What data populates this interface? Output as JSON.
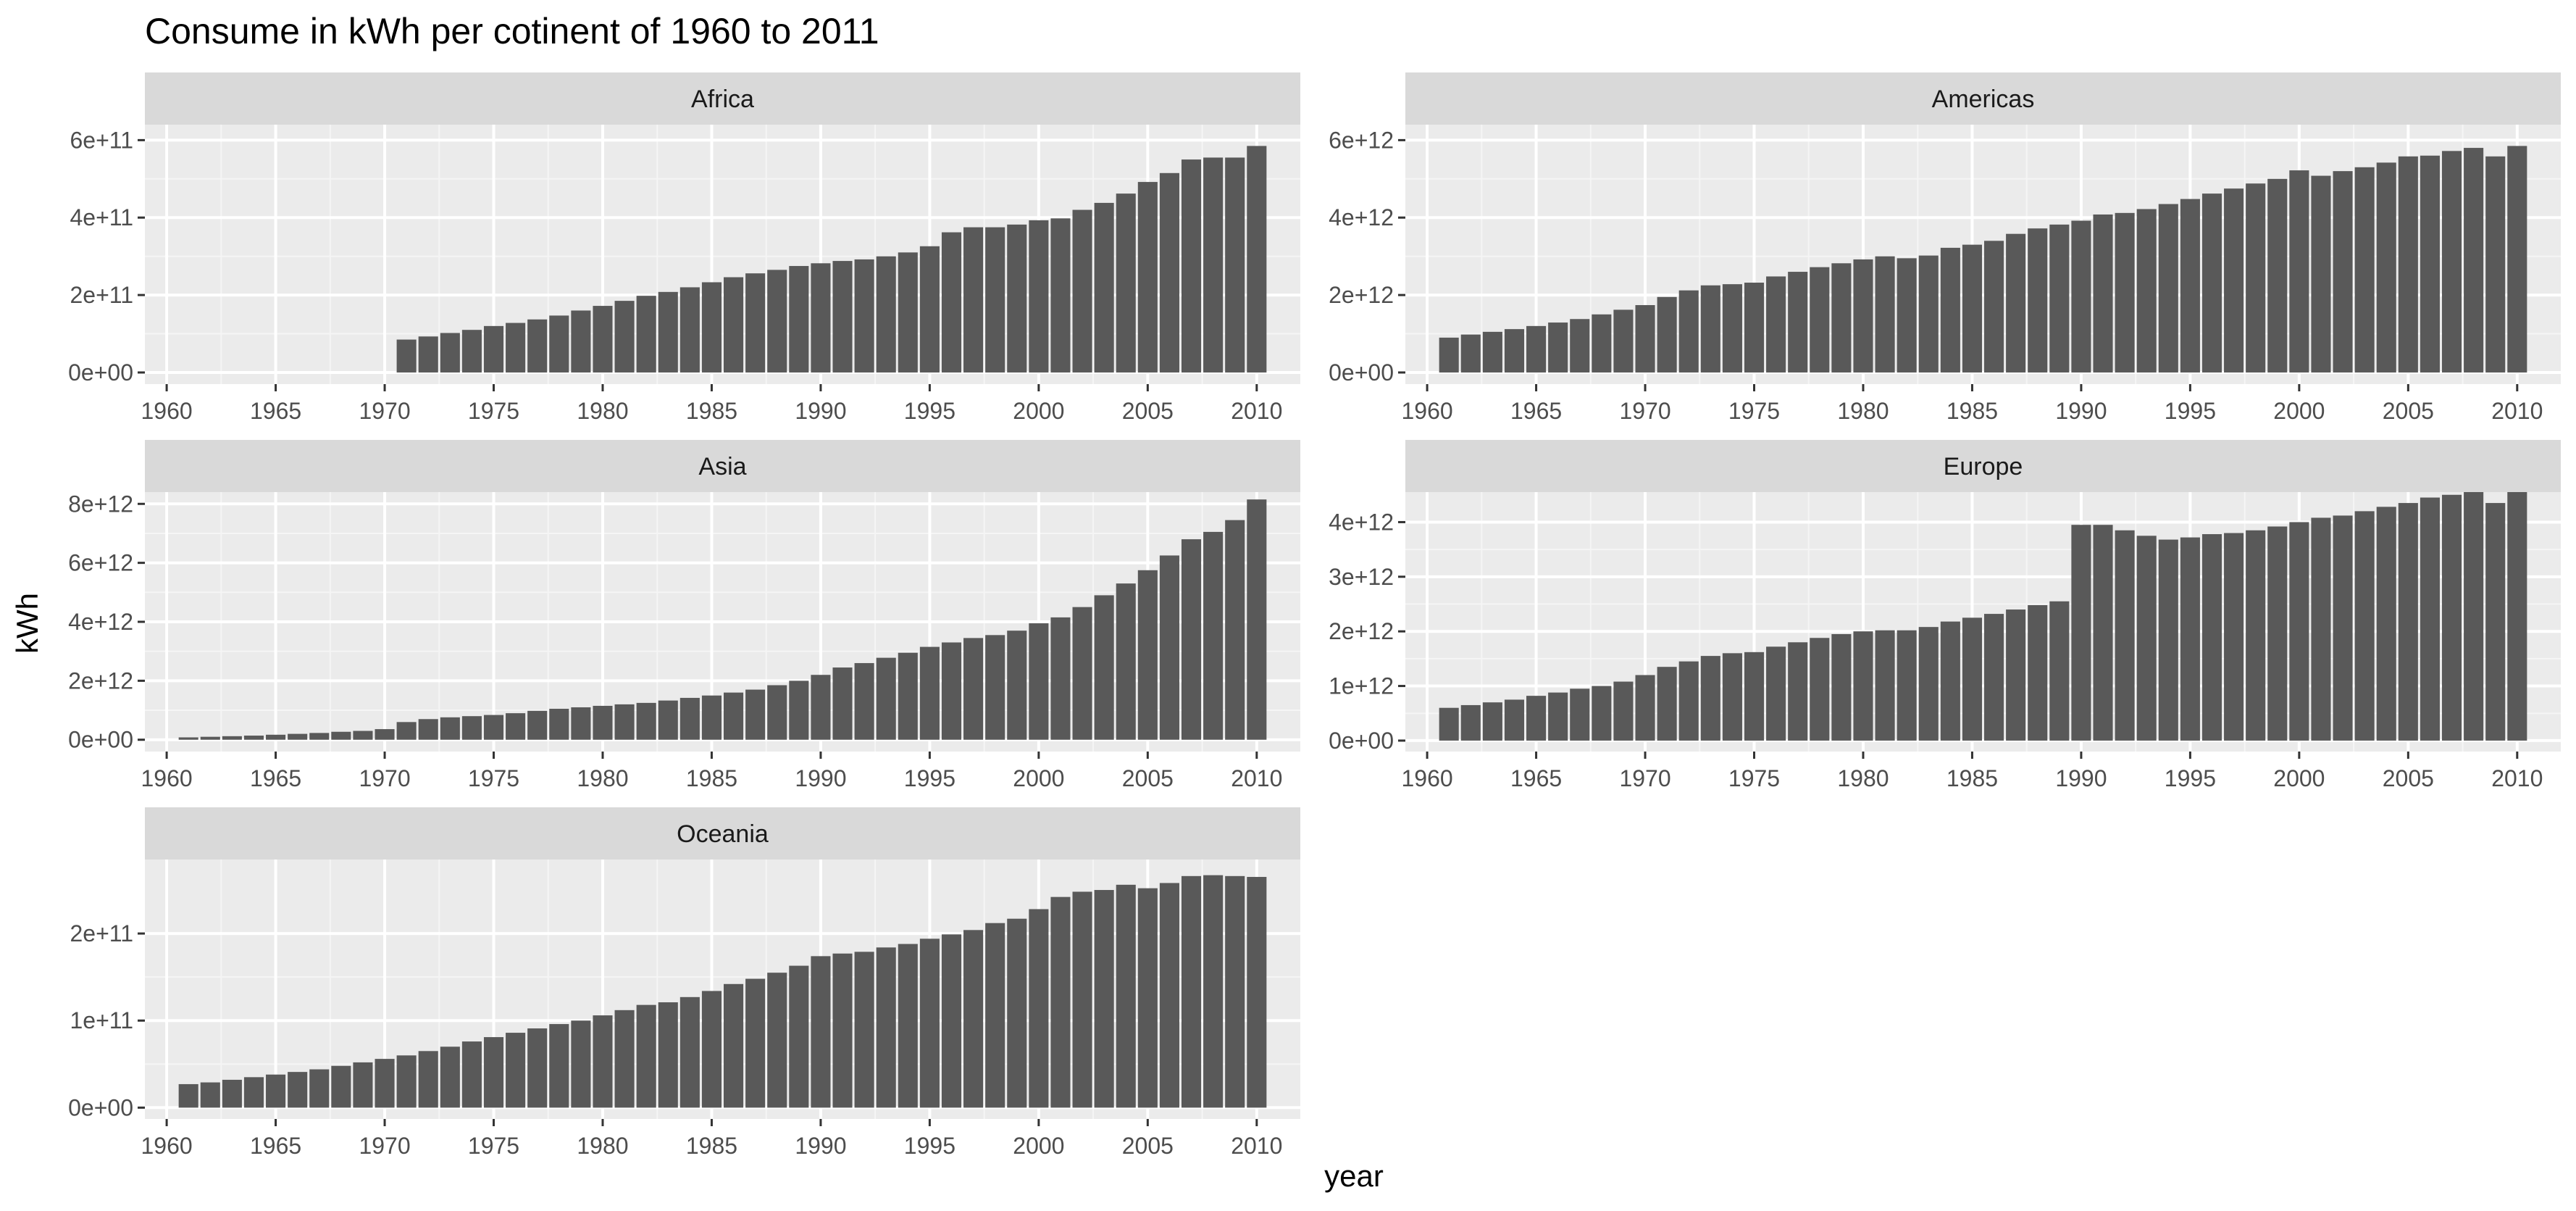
{
  "chart_data": {
    "type": "bar",
    "title": "Consume in kWh per cotinent of 1960 to 2011",
    "xlabel": "year",
    "ylabel": "kWh",
    "x_ticks": [
      "1960",
      "1965",
      "1970",
      "1975",
      "1980",
      "1985",
      "1990",
      "1995",
      "2000",
      "2005",
      "2010"
    ],
    "xlim": [
      1959,
      2012
    ],
    "grid": true,
    "facet_layout": "3 rows x 2 columns",
    "bar_color": "#595959",
    "panel_background": "#ebebeb",
    "strip_background": "#d9d9d9",
    "panels": [
      {
        "name": "Africa",
        "ylim": [
          -30000000000.0,
          640000000000.0
        ],
        "y_ticks": [
          {
            "value": 0,
            "label": "0e+00"
          },
          {
            "value": 200000000000.0,
            "label": "2e+11"
          },
          {
            "value": 400000000000.0,
            "label": "4e+11"
          },
          {
            "value": 600000000000.0,
            "label": "6e+11"
          }
        ],
        "x": [
          1971,
          1972,
          1973,
          1974,
          1975,
          1976,
          1977,
          1978,
          1979,
          1980,
          1981,
          1982,
          1983,
          1984,
          1985,
          1986,
          1987,
          1988,
          1989,
          1990,
          1991,
          1992,
          1993,
          1994,
          1995,
          1996,
          1997,
          1998,
          1999,
          2000,
          2001,
          2002,
          2003,
          2004,
          2005,
          2006,
          2007,
          2008,
          2009,
          2010
        ],
        "values": [
          85000000000.0,
          93000000000.0,
          102000000000.0,
          110000000000.0,
          120000000000.0,
          128000000000.0,
          137000000000.0,
          147000000000.0,
          160000000000.0,
          172000000000.0,
          185000000000.0,
          198000000000.0,
          208000000000.0,
          220000000000.0,
          233000000000.0,
          246000000000.0,
          256000000000.0,
          265000000000.0,
          275000000000.0,
          282000000000.0,
          288000000000.0,
          292000000000.0,
          300000000000.0,
          310000000000.0,
          326000000000.0,
          362000000000.0,
          375000000000.0,
          375000000000.0,
          382000000000.0,
          393000000000.0,
          398000000000.0,
          420000000000.0,
          438000000000.0,
          462000000000.0,
          492000000000.0,
          515000000000.0,
          550000000000.0,
          555000000000.0,
          555000000000.0,
          585000000000.0
        ]
      },
      {
        "name": "Americas",
        "ylim": [
          -300000000000.0,
          6400000000000.0
        ],
        "y_ticks": [
          {
            "value": 0,
            "label": "0e+00"
          },
          {
            "value": 2000000000000.0,
            "label": "2e+12"
          },
          {
            "value": 4000000000000.0,
            "label": "4e+12"
          },
          {
            "value": 6000000000000.0,
            "label": "6e+12"
          }
        ],
        "x": [
          1961,
          1962,
          1963,
          1964,
          1965,
          1966,
          1967,
          1968,
          1969,
          1970,
          1971,
          1972,
          1973,
          1974,
          1975,
          1976,
          1977,
          1978,
          1979,
          1980,
          1981,
          1982,
          1983,
          1984,
          1985,
          1986,
          1987,
          1988,
          1989,
          1990,
          1991,
          1992,
          1993,
          1994,
          1995,
          1996,
          1997,
          1998,
          1999,
          2000,
          2001,
          2002,
          2003,
          2004,
          2005,
          2006,
          2007,
          2008,
          2009,
          2010
        ],
        "values": [
          900000000000.0,
          980000000000.0,
          1050000000000.0,
          1120000000000.0,
          1200000000000.0,
          1290000000000.0,
          1380000000000.0,
          1500000000000.0,
          1620000000000.0,
          1740000000000.0,
          1950000000000.0,
          2120000000000.0,
          2250000000000.0,
          2280000000000.0,
          2320000000000.0,
          2480000000000.0,
          2600000000000.0,
          2720000000000.0,
          2820000000000.0,
          2920000000000.0,
          3000000000000.0,
          2950000000000.0,
          3020000000000.0,
          3220000000000.0,
          3300000000000.0,
          3400000000000.0,
          3580000000000.0,
          3720000000000.0,
          3820000000000.0,
          3920000000000.0,
          4080000000000.0,
          4120000000000.0,
          4220000000000.0,
          4350000000000.0,
          4480000000000.0,
          4620000000000.0,
          4750000000000.0,
          4880000000000.0,
          5000000000000.0,
          5220000000000.0,
          5080000000000.0,
          5200000000000.0,
          5300000000000.0,
          5420000000000.0,
          5580000000000.0,
          5600000000000.0,
          5720000000000.0,
          5800000000000.0,
          5580000000000.0,
          5850000000000.0
        ]
      },
      {
        "name": "Asia",
        "ylim": [
          -400000000000.0,
          8400000000000.0
        ],
        "y_ticks": [
          {
            "value": 0,
            "label": "0e+00"
          },
          {
            "value": 2000000000000.0,
            "label": "2e+12"
          },
          {
            "value": 4000000000000.0,
            "label": "4e+12"
          },
          {
            "value": 6000000000000.0,
            "label": "6e+12"
          },
          {
            "value": 8000000000000.0,
            "label": "8e+12"
          }
        ],
        "x": [
          1961,
          1962,
          1963,
          1964,
          1965,
          1966,
          1967,
          1968,
          1969,
          1970,
          1971,
          1972,
          1973,
          1974,
          1975,
          1976,
          1977,
          1978,
          1979,
          1980,
          1981,
          1982,
          1983,
          1984,
          1985,
          1986,
          1987,
          1988,
          1989,
          1990,
          1991,
          1992,
          1993,
          1994,
          1995,
          1996,
          1997,
          1998,
          1999,
          2000,
          2001,
          2002,
          2003,
          2004,
          2005,
          2006,
          2007,
          2008,
          2009,
          2010
        ],
        "values": [
          80000000000.0,
          100000000000.0,
          120000000000.0,
          140000000000.0,
          170000000000.0,
          200000000000.0,
          230000000000.0,
          270000000000.0,
          300000000000.0,
          360000000000.0,
          600000000000.0,
          700000000000.0,
          760000000000.0,
          800000000000.0,
          840000000000.0,
          900000000000.0,
          980000000000.0,
          1050000000000.0,
          1100000000000.0,
          1150000000000.0,
          1200000000000.0,
          1250000000000.0,
          1330000000000.0,
          1420000000000.0,
          1500000000000.0,
          1600000000000.0,
          1700000000000.0,
          1850000000000.0,
          2000000000000.0,
          2200000000000.0,
          2450000000000.0,
          2600000000000.0,
          2780000000000.0,
          2950000000000.0,
          3150000000000.0,
          3300000000000.0,
          3450000000000.0,
          3550000000000.0,
          3700000000000.0,
          3950000000000.0,
          4150000000000.0,
          4500000000000.0,
          4900000000000.0,
          5300000000000.0,
          5750000000000.0,
          6250000000000.0,
          6800000000000.0,
          7050000000000.0,
          7450000000000.0,
          8150000000000.0
        ]
      },
      {
        "name": "Europe",
        "ylim": [
          -200000000000.0,
          4550000000000.0
        ],
        "y_ticks": [
          {
            "value": 0,
            "label": "0e+00"
          },
          {
            "value": 1000000000000.0,
            "label": "1e+12"
          },
          {
            "value": 2000000000000.0,
            "label": "2e+12"
          },
          {
            "value": 3000000000000.0,
            "label": "3e+12"
          },
          {
            "value": 4000000000000.0,
            "label": "4e+12"
          }
        ],
        "x": [
          1961,
          1962,
          1963,
          1964,
          1965,
          1966,
          1967,
          1968,
          1969,
          1970,
          1971,
          1972,
          1973,
          1974,
          1975,
          1976,
          1977,
          1978,
          1979,
          1980,
          1981,
          1982,
          1983,
          1984,
          1985,
          1986,
          1987,
          1988,
          1989,
          1990,
          1991,
          1992,
          1993,
          1994,
          1995,
          1996,
          1997,
          1998,
          1999,
          2000,
          2001,
          2002,
          2003,
          2004,
          2005,
          2006,
          2007,
          2008,
          2009,
          2010
        ],
        "values": [
          600000000000.0,
          650000000000.0,
          700000000000.0,
          750000000000.0,
          820000000000.0,
          880000000000.0,
          950000000000.0,
          1000000000000.0,
          1080000000000.0,
          1200000000000.0,
          1350000000000.0,
          1450000000000.0,
          1550000000000.0,
          1600000000000.0,
          1620000000000.0,
          1720000000000.0,
          1800000000000.0,
          1880000000000.0,
          1950000000000.0,
          2000000000000.0,
          2020000000000.0,
          2020000000000.0,
          2080000000000.0,
          2180000000000.0,
          2250000000000.0,
          2320000000000.0,
          2400000000000.0,
          2480000000000.0,
          2550000000000.0,
          3950000000000.0,
          3950000000000.0,
          3850000000000.0,
          3750000000000.0,
          3680000000000.0,
          3720000000000.0,
          3780000000000.0,
          3800000000000.0,
          3850000000000.0,
          3920000000000.0,
          4000000000000.0,
          4080000000000.0,
          4120000000000.0,
          4200000000000.0,
          4280000000000.0,
          4350000000000.0,
          4450000000000.0,
          4500000000000.0,
          4550000000000.0,
          4350000000000.0,
          4550000000000.0
        ]
      },
      {
        "name": "Oceania",
        "ylim": [
          -13000000000.0,
          285000000000.0
        ],
        "y_ticks": [
          {
            "value": 0,
            "label": "0e+00"
          },
          {
            "value": 100000000000.0,
            "label": "1e+11"
          },
          {
            "value": 200000000000.0,
            "label": "2e+11"
          }
        ],
        "x": [
          1961,
          1962,
          1963,
          1964,
          1965,
          1966,
          1967,
          1968,
          1969,
          1970,
          1971,
          1972,
          1973,
          1974,
          1975,
          1976,
          1977,
          1978,
          1979,
          1980,
          1981,
          1982,
          1983,
          1984,
          1985,
          1986,
          1987,
          1988,
          1989,
          1990,
          1991,
          1992,
          1993,
          1994,
          1995,
          1996,
          1997,
          1998,
          1999,
          2000,
          2001,
          2002,
          2003,
          2004,
          2005,
          2006,
          2007,
          2008,
          2009,
          2010
        ],
        "values": [
          27000000000.0,
          29000000000.0,
          32000000000.0,
          35000000000.0,
          38000000000.0,
          41000000000.0,
          44000000000.0,
          48000000000.0,
          52000000000.0,
          56000000000.0,
          60000000000.0,
          65000000000.0,
          70000000000.0,
          76000000000.0,
          81000000000.0,
          86000000000.0,
          91000000000.0,
          96000000000.0,
          100000000000.0,
          106000000000.0,
          112000000000.0,
          118000000000.0,
          121000000000.0,
          127000000000.0,
          134000000000.0,
          142000000000.0,
          148000000000.0,
          155000000000.0,
          163000000000.0,
          174000000000.0,
          177000000000.0,
          179000000000.0,
          184000000000.0,
          188000000000.0,
          194000000000.0,
          199000000000.0,
          204000000000.0,
          212000000000.0,
          217000000000.0,
          228000000000.0,
          242000000000.0,
          248000000000.0,
          250000000000.0,
          256000000000.0,
          252000000000.0,
          258000000000.0,
          266000000000.0,
          267000000000.0,
          266000000000.0,
          265000000000.0
        ]
      }
    ]
  }
}
